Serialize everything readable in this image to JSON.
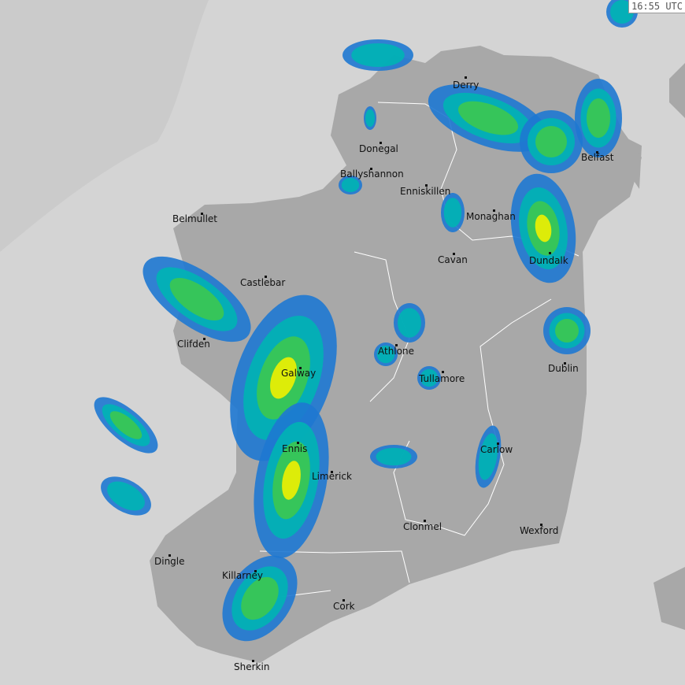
{
  "timestamp": "16:55 UTC",
  "colors": {
    "sea": "#d4d4d4",
    "outer_sea": "#cbcbcb",
    "land": "#a8a8a8",
    "border": "#ffffff",
    "rain_light": "#1e78d2",
    "rain_mod": "#00b4b4",
    "rain_heavy": "#3cc850",
    "rain_very_heavy": "#f0f000",
    "rain_extreme": "#e03020"
  },
  "cities": [
    {
      "name": "Derry"
    },
    {
      "name": "Donegal"
    },
    {
      "name": "Ballyshannon"
    },
    {
      "name": "Enniskillen"
    },
    {
      "name": "Belfast"
    },
    {
      "name": "Monaghan"
    },
    {
      "name": "Belmullet"
    },
    {
      "name": "Cavan"
    },
    {
      "name": "Dundalk"
    },
    {
      "name": "Castlebar"
    },
    {
      "name": "Clifden"
    },
    {
      "name": "Athlone"
    },
    {
      "name": "Galway"
    },
    {
      "name": "Tullamore"
    },
    {
      "name": "Dublin"
    },
    {
      "name": "Ennis"
    },
    {
      "name": "Carlow"
    },
    {
      "name": "Limerick"
    },
    {
      "name": "Clonmel"
    },
    {
      "name": "Wexford"
    },
    {
      "name": "Dingle"
    },
    {
      "name": "Killarney"
    },
    {
      "name": "Cork"
    },
    {
      "name": "Sherkin"
    }
  ]
}
